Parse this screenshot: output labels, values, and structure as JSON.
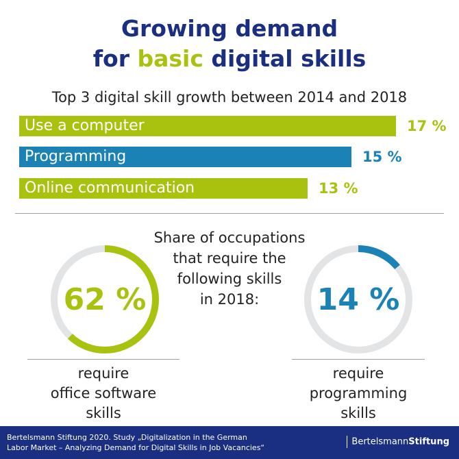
{
  "header": {
    "title_line1": "Growing demand",
    "title_line2_pre": "for ",
    "title_line2_highlight": "basic",
    "title_line2_post": " digital skills"
  },
  "chart_data": [
    {
      "type": "bar",
      "orientation": "horizontal",
      "title": "Top 3 digital skill growth between 2014 and 2018",
      "categories": [
        "Use a computer",
        "Programming",
        "Online communication"
      ],
      "values": [
        17,
        15,
        13
      ],
      "value_labels": [
        "17 %",
        "15 %",
        "13 %"
      ],
      "colors": [
        "#a9c20f",
        "#1a82b4",
        "#a9c20f"
      ],
      "xlim": [
        0,
        17
      ]
    },
    {
      "type": "pie",
      "style": "donut",
      "title": "Share of occupations that require the following skills in 2018:",
      "charts": [
        {
          "value": 62,
          "label": "62 %",
          "caption_lines": [
            "require",
            "office software",
            "skills"
          ],
          "color": "#a9c20f"
        },
        {
          "value": 14,
          "label": "14 %",
          "caption_lines": [
            "require",
            "programming",
            "skills"
          ],
          "color": "#1a82b4"
        }
      ]
    }
  ],
  "center_text_lines": [
    "Share of occupations",
    "that require the",
    "following skills",
    "in 2018:"
  ],
  "colors": {
    "navy": "#1b2f82",
    "green": "#a9c20f",
    "blue": "#1a82b4",
    "track": "#e3e4e6"
  },
  "footer": {
    "source_line1": "Bertelsmann Stiftung 2020. Study „Digitalization in the German",
    "source_line2": "Labor Market – Analyzing Demand for Digital Skills in Job Vacancies“",
    "brand_regular": "Bertelsmann",
    "brand_bold": "Stiftung"
  }
}
